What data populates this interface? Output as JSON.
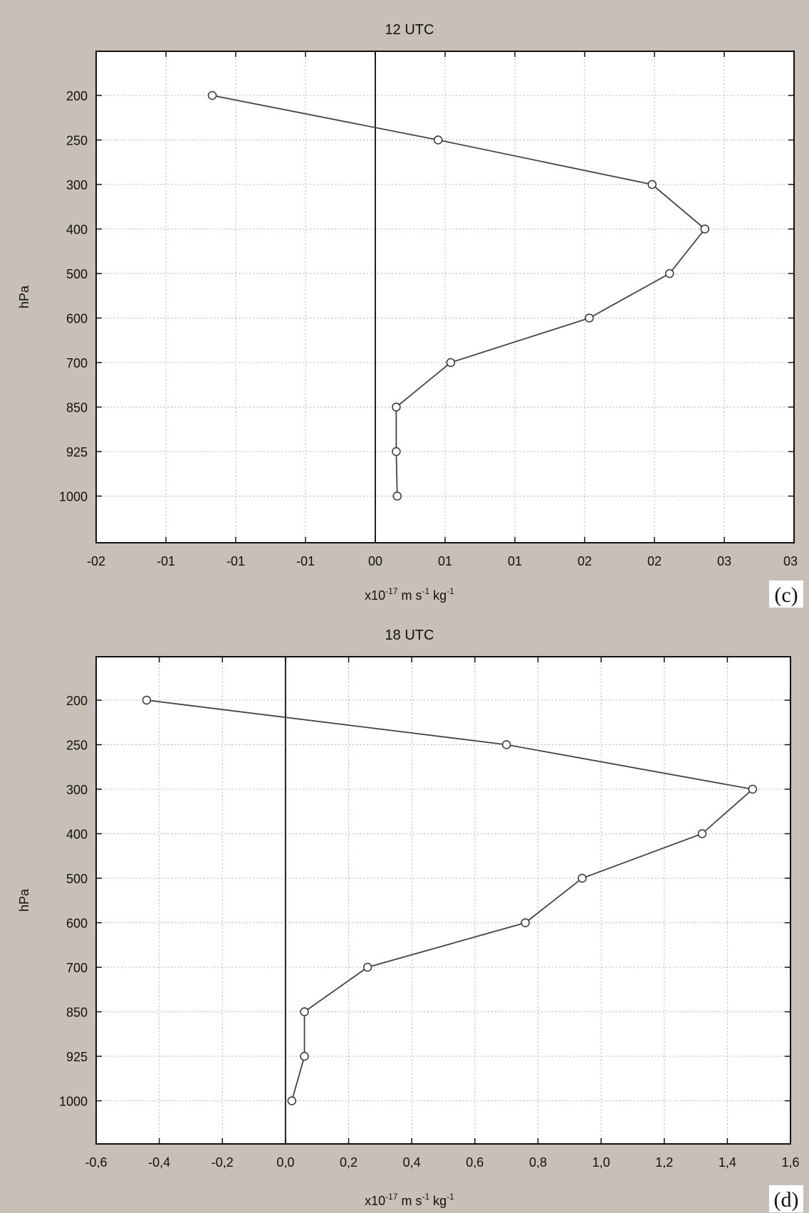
{
  "chart_data": [
    {
      "type": "line",
      "title": "12 UTC",
      "panel_label": "(c)",
      "xlabel": {
        "base": "x10",
        "exp1": "-17",
        "mid": " m s",
        "exp2": "-1",
        "tail": " kg",
        "exp3": "-1"
      },
      "ylabel": "hPa",
      "xlim": [
        -0.2,
        0.3
      ],
      "x_ticks": [
        -0.2,
        -0.15,
        -0.1,
        -0.05,
        0.0,
        0.05,
        0.1,
        0.15,
        0.2,
        0.25,
        0.3
      ],
      "x_tick_labels": [
        "-02",
        "-01",
        "-01",
        "-01",
        "00",
        "01",
        "01",
        "02",
        "02",
        "03"
      ],
      "x_tick_label_values": [
        -0.2,
        -0.15,
        -0.1,
        -0.05,
        0.0,
        0.05,
        0.1,
        0.15,
        0.2,
        0.25
      ],
      "x_tick_labels_extra": [
        {
          "label": "03",
          "value": 0.25
        }
      ],
      "y_categories": [
        "200",
        "250",
        "300",
        "400",
        "500",
        "600",
        "700",
        "850",
        "925",
        "1000"
      ],
      "zero_line": 0.0,
      "series": [
        {
          "x": [
            -0.1168,
            0.045,
            0.1983,
            0.2361,
            0.2108,
            0.1533,
            0.054,
            0.015,
            0.015,
            0.0157
          ],
          "y": [
            "200",
            "250",
            "300",
            "400",
            "500",
            "600",
            "700",
            "850",
            "925",
            "1000"
          ]
        }
      ],
      "grid": true
    },
    {
      "type": "line",
      "title": "18 UTC",
      "panel_label": "(d)",
      "xlabel": {
        "base": "x10",
        "exp1": "-17",
        "mid": " m s",
        "exp2": "-1",
        "tail": " kg",
        "exp3": "-1"
      },
      "ylabel": "hPa",
      "xlim": [
        -0.6,
        1.6
      ],
      "x_ticks": [
        -0.6,
        -0.4,
        -0.2,
        0.0,
        0.2,
        0.4,
        0.6,
        0.8,
        1.0,
        1.2,
        1.4,
        1.6
      ],
      "x_tick_labels": [
        "-0,6",
        "-0,4",
        "-0,2",
        "0,0",
        "0,2",
        "0,4",
        "0,6",
        "0,8",
        "1,0",
        "1,2",
        "1,4",
        "1,6"
      ],
      "y_categories": [
        "200",
        "250",
        "300",
        "400",
        "500",
        "600",
        "700",
        "850",
        "925",
        "1000"
      ],
      "zero_line": 0.0,
      "series": [
        {
          "x": [
            -0.44,
            0.7,
            1.48,
            1.32,
            0.94,
            0.76,
            0.26,
            0.06,
            0.06,
            0.02
          ],
          "y": [
            "200",
            "250",
            "300",
            "400",
            "500",
            "600",
            "700",
            "850",
            "925",
            "1000"
          ]
        }
      ],
      "grid": true
    }
  ]
}
